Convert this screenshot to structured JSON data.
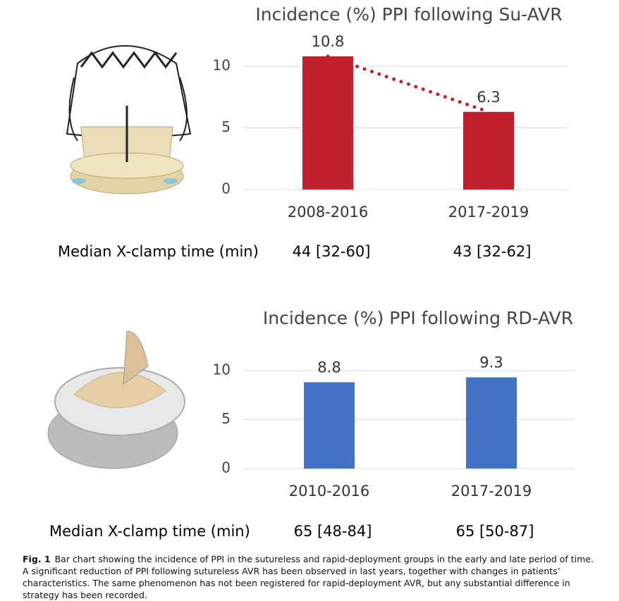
{
  "chart_data": [
    {
      "type": "bar",
      "title": "Incidence (%) PPI following Su-AVR",
      "categories": [
        "2008-2016",
        "2017-2019"
      ],
      "values": [
        10.8,
        6.3
      ],
      "color": "#c0202a",
      "ylim": [
        0,
        12
      ],
      "yticks": [
        0,
        5,
        10
      ],
      "grid": true,
      "connector": "dotted",
      "table_row": {
        "label": "Median X-clamp time (min)",
        "cells": [
          "44 [32-60]",
          "43 [32-62]"
        ]
      }
    },
    {
      "type": "bar",
      "title": "Incidence (%) PPI following RD-AVR",
      "categories": [
        "2010-2016",
        "2017-2019"
      ],
      "values": [
        8.8,
        9.3
      ],
      "color": "#4472c4",
      "ylim": [
        0,
        12
      ],
      "yticks": [
        0,
        5,
        10
      ],
      "grid": true,
      "table_row": {
        "label": "Median X-clamp time (min)",
        "cells": [
          "65 [48-84]",
          "65 [50-87]"
        ]
      }
    }
  ],
  "caption": {
    "label": "Fig. 1",
    "text": "Bar chart showing the incidence of PPI in the sutureless and rapid-deployment groups in the early and late period of time. A significant reduction of PPI following sutureless AVR has been observed in last years, together with changes in patients’ characteristics. The same phenomenon has not been registered for rapid-deployment AVR, but any substantial difference in strategy has been recorded."
  }
}
